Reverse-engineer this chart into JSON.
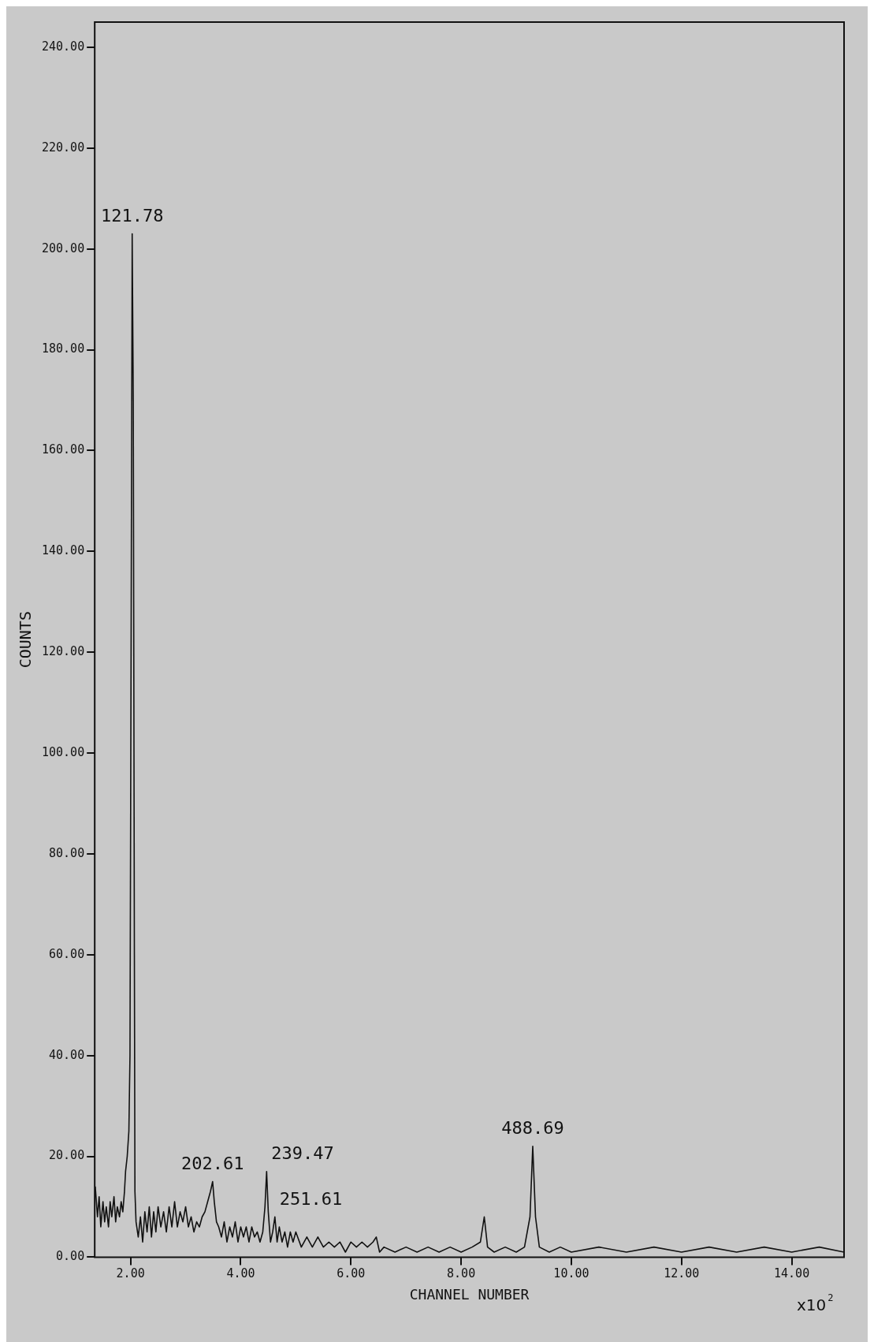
{
  "chart_data": {
    "type": "line",
    "xlabel": "CHANNEL NUMBER",
    "ylabel": "COUNTS",
    "annotations": [
      "x10$^{2}$",
      {
        "text": "121.78",
        "x": 2.03,
        "y": 203
      },
      {
        "text": "202.61",
        "x": 3.49,
        "y": 15
      },
      {
        "text": "239.47",
        "x": 4.47,
        "y": 17
      },
      {
        "text": "251.61",
        "x": 4.62,
        "y": 8
      },
      {
        "text": "488.69",
        "x": 9.3,
        "y": 22
      }
    ],
    "xlim": [
      1.35,
      14.95
    ],
    "xticks": [
      {
        "value": 2,
        "label": "2.00"
      },
      {
        "value": 4,
        "label": "4.00"
      },
      {
        "value": 6,
        "label": "6.00"
      },
      {
        "value": 8,
        "label": "8.00"
      },
      {
        "value": 10,
        "label": "10.00"
      },
      {
        "value": 12,
        "label": "12.00"
      },
      {
        "value": 14,
        "label": "14.00"
      }
    ],
    "ylim": [
      0,
      245
    ],
    "yticks": [
      {
        "value": 0,
        "label": "0.00"
      },
      {
        "value": 20,
        "label": "20.00"
      },
      {
        "value": 40,
        "label": "40.00"
      },
      {
        "value": 60,
        "label": "60.00"
      },
      {
        "value": 80,
        "label": "80.00"
      },
      {
        "value": 100,
        "label": "100.00"
      },
      {
        "value": 120,
        "label": "120.00"
      },
      {
        "value": 140,
        "label": "140.00"
      },
      {
        "value": 160,
        "label": "160.00"
      },
      {
        "value": 180,
        "label": "180.00"
      },
      {
        "value": 200,
        "label": "200.00"
      },
      {
        "value": 220,
        "label": "220.00"
      },
      {
        "value": 240,
        "label": "240.00"
      }
    ],
    "legend": false,
    "marker": "none",
    "line_style": "solid",
    "series": [
      {
        "color": "#111111",
        "x": [
          1.36,
          1.4,
          1.43,
          1.46,
          1.5,
          1.53,
          1.56,
          1.6,
          1.63,
          1.66,
          1.7,
          1.73,
          1.76,
          1.8,
          1.83,
          1.86,
          1.89,
          1.91,
          1.94,
          1.97,
          1.99,
          2.01,
          2.03,
          2.05,
          2.07,
          2.08,
          2.1,
          2.14,
          2.18,
          2.22,
          2.26,
          2.3,
          2.34,
          2.38,
          2.42,
          2.46,
          2.5,
          2.55,
          2.6,
          2.65,
          2.7,
          2.75,
          2.8,
          2.85,
          2.9,
          2.95,
          3.0,
          3.05,
          3.1,
          3.15,
          3.2,
          3.25,
          3.3,
          3.35,
          3.4,
          3.45,
          3.49,
          3.52,
          3.56,
          3.6,
          3.65,
          3.7,
          3.75,
          3.8,
          3.85,
          3.9,
          3.95,
          4.0,
          4.05,
          4.1,
          4.15,
          4.2,
          4.25,
          4.3,
          4.35,
          4.4,
          4.44,
          4.47,
          4.5,
          4.54,
          4.58,
          4.62,
          4.66,
          4.7,
          4.75,
          4.8,
          4.85,
          4.9,
          4.95,
          5.0,
          5.1,
          5.2,
          5.3,
          5.4,
          5.5,
          5.6,
          5.7,
          5.8,
          5.9,
          6.0,
          6.1,
          6.2,
          6.3,
          6.4,
          6.46,
          6.52,
          6.6,
          6.8,
          7.0,
          7.2,
          7.4,
          7.6,
          7.8,
          8.0,
          8.2,
          8.35,
          8.42,
          8.48,
          8.6,
          8.8,
          9.0,
          9.15,
          9.25,
          9.3,
          9.35,
          9.42,
          9.6,
          9.8,
          10.0,
          10.5,
          11.0,
          11.5,
          12.0,
          12.5,
          13.0,
          13.5,
          14.0,
          14.5,
          14.95
        ],
        "values": [
          14,
          8,
          12,
          6,
          11,
          7,
          10,
          6,
          11,
          8,
          12,
          7,
          10,
          8,
          11,
          9,
          13,
          17,
          20,
          25,
          40,
          120,
          203,
          170,
          60,
          13,
          7,
          4,
          8,
          3,
          9,
          5,
          10,
          4,
          9,
          5,
          10,
          6,
          9,
          5,
          10,
          6,
          11,
          6,
          9,
          7,
          10,
          6,
          8,
          5,
          7,
          6,
          8,
          9,
          11,
          13,
          15,
          11,
          7,
          6,
          4,
          7,
          3,
          6,
          4,
          7,
          3,
          6,
          4,
          6,
          3,
          6,
          4,
          5,
          3,
          5,
          10,
          17,
          9,
          3,
          5,
          8,
          3,
          6,
          3,
          5,
          2,
          5,
          3,
          5,
          2,
          4,
          2,
          4,
          2,
          3,
          2,
          3,
          1,
          3,
          2,
          3,
          2,
          3,
          4,
          1,
          2,
          1,
          2,
          1,
          2,
          1,
          2,
          1,
          2,
          3,
          8,
          2,
          1,
          2,
          1,
          2,
          8,
          22,
          8,
          2,
          1,
          2,
          1,
          2,
          1,
          2,
          1,
          2,
          1,
          2,
          1,
          2,
          1
        ]
      }
    ]
  }
}
